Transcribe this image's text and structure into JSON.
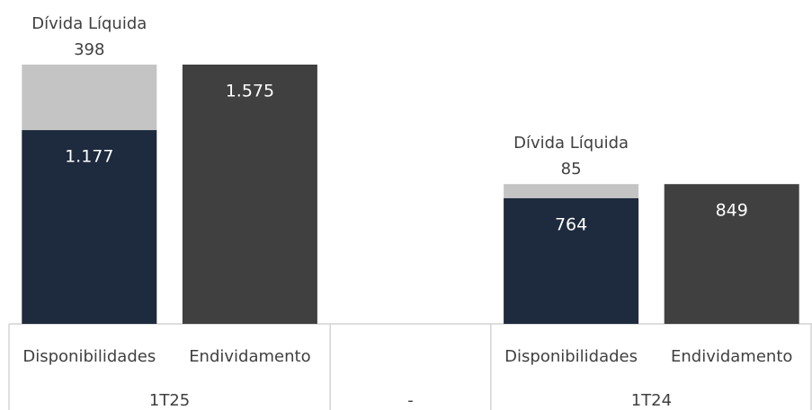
{
  "chart_data": {
    "type": "bar",
    "stacked": true,
    "groups": [
      {
        "label": "1T25",
        "categories": [
          "Disponibilidades",
          "Endividamento"
        ]
      },
      {
        "label": "-",
        "categories": [
          null
        ]
      },
      {
        "label": "1T24",
        "categories": [
          "Disponibilidades",
          "Endividamento"
        ]
      }
    ],
    "series": [
      {
        "color": "#1e2a3d",
        "values": [
          1177,
          null,
          null,
          764,
          null
        ],
        "value_labels": [
          "1.177",
          null,
          null,
          "764",
          null
        ]
      },
      {
        "color": "#404040",
        "values": [
          null,
          1575,
          null,
          null,
          849
        ],
        "value_labels": [
          null,
          "1.575",
          null,
          null,
          "849"
        ]
      },
      {
        "name": "Dívida Líquida",
        "color": "#c4c4c4",
        "values": [
          398,
          null,
          null,
          85,
          null
        ],
        "value_labels": [
          "398",
          null,
          null,
          "85",
          null
        ]
      }
    ],
    "ylim": [
      0,
      1575
    ]
  }
}
